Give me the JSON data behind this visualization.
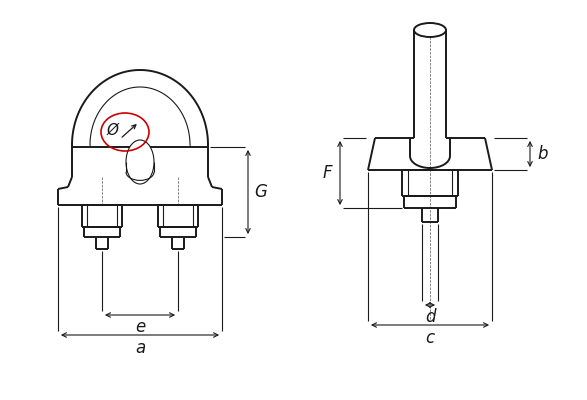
{
  "bg_color": "#ffffff",
  "line_color": "#1a1a1a",
  "dim_color": "#1a1a1a",
  "red_circle_color": "#cc0000",
  "fig_width": 5.87,
  "fig_height": 4.0,
  "dpi": 100,
  "labels": {
    "G": "G",
    "e": "e",
    "a": "a",
    "F": "F",
    "b": "b",
    "d": "d",
    "c": "c",
    "phi": "Ø"
  }
}
